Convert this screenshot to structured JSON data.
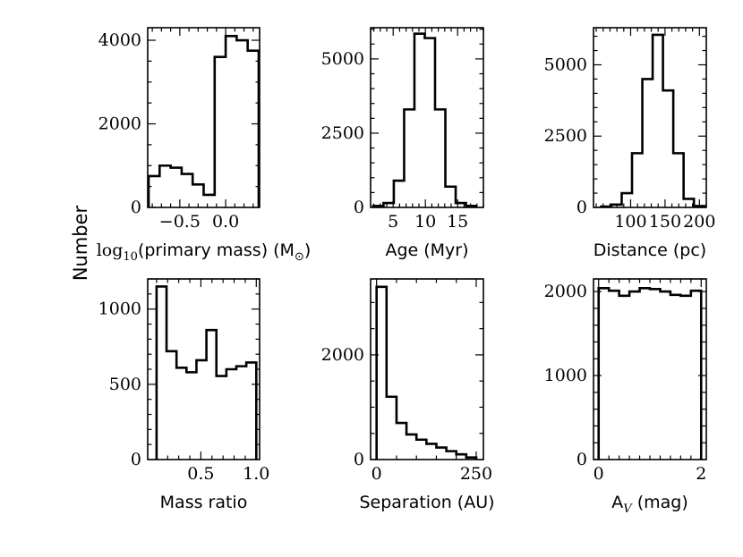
{
  "figure": {
    "ylabel": "Number",
    "line_color": "#000000",
    "background": "#ffffff"
  },
  "chart_data": [
    {
      "type": "bar",
      "histogram": true,
      "xlabel_parts": [
        "log",
        "10",
        "(primary mass) (M",
        "⊙",
        ")"
      ],
      "xlabel": "log10(primary mass) (M⊙)",
      "xlim": [
        -0.85,
        0.37
      ],
      "ylim": [
        0,
        4300
      ],
      "x_ticks": [
        -0.5,
        0.0
      ],
      "x_tick_labels": [
        "−0.5",
        "0.0"
      ],
      "x_minor_step": 0.1,
      "y_ticks": [
        0,
        2000,
        4000
      ],
      "y_tick_labels": [
        "0",
        "2000",
        "4000"
      ],
      "y_minor_step": 500,
      "bin_edges": [
        -0.84,
        -0.72,
        -0.6,
        -0.48,
        -0.36,
        -0.24,
        -0.12,
        0.0,
        0.12,
        0.24,
        0.36
      ],
      "counts": [
        750,
        1000,
        950,
        800,
        550,
        300,
        3600,
        4100,
        4000,
        3750
      ]
    },
    {
      "type": "bar",
      "histogram": true,
      "xlabel": "Age (Myr)",
      "xlim": [
        1.5,
        19
      ],
      "ylim": [
        0,
        6050
      ],
      "x_ticks": [
        5,
        10,
        15
      ],
      "x_tick_labels": [
        "5",
        "10",
        "15"
      ],
      "x_minor_step": 1,
      "y_ticks": [
        0,
        2500,
        5000
      ],
      "y_tick_labels": [
        "0",
        "2500",
        "5000"
      ],
      "y_minor_step": 500,
      "bin_edges": [
        1.9,
        3.5,
        5.1,
        6.7,
        8.3,
        9.9,
        11.5,
        13.1,
        14.7,
        16.3,
        17.9
      ],
      "counts": [
        50,
        150,
        900,
        3300,
        5850,
        5700,
        3300,
        700,
        150,
        50
      ]
    },
    {
      "type": "bar",
      "histogram": true,
      "xlabel": "Distance (pc)",
      "xlim": [
        46,
        210
      ],
      "ylim": [
        0,
        6300
      ],
      "x_ticks": [
        100,
        150,
        200
      ],
      "x_tick_labels": [
        "100",
        "150",
        "200"
      ],
      "x_minor_step": 10,
      "y_ticks": [
        0,
        2500,
        5000
      ],
      "y_tick_labels": [
        "0",
        "2500",
        "5000"
      ],
      "y_minor_step": 500,
      "bin_edges": [
        57,
        72,
        87,
        102,
        117,
        132,
        147,
        162,
        177,
        192,
        207
      ],
      "counts": [
        30,
        100,
        500,
        1900,
        4500,
        6050,
        4100,
        1900,
        300,
        50
      ]
    },
    {
      "type": "bar",
      "histogram": true,
      "xlabel": "Mass ratio",
      "xlim": [
        0.02,
        1.03
      ],
      "ylim": [
        0,
        1200
      ],
      "x_ticks": [
        0.5,
        1.0
      ],
      "x_tick_labels": [
        "0.5",
        "1.0"
      ],
      "x_minor_step": 0.1,
      "y_ticks": [
        0,
        500,
        1000
      ],
      "y_tick_labels": [
        "0",
        "500",
        "1000"
      ],
      "y_minor_step": 100,
      "bin_edges": [
        0.1,
        0.19,
        0.28,
        0.37,
        0.46,
        0.55,
        0.64,
        0.73,
        0.82,
        0.91,
        1.0
      ],
      "counts": [
        1150,
        720,
        610,
        580,
        660,
        860,
        555,
        600,
        620,
        645
      ]
    },
    {
      "type": "bar",
      "histogram": true,
      "xlabel": "Separation (AU)",
      "xlim": [
        -15,
        268
      ],
      "ylim": [
        0,
        3450
      ],
      "x_ticks": [
        0,
        250
      ],
      "x_tick_labels": [
        "0",
        "250"
      ],
      "x_minor_step": 50,
      "y_ticks": [
        0,
        2000
      ],
      "y_tick_labels": [
        "0",
        "2000"
      ],
      "y_minor_step": 500,
      "bin_edges": [
        0,
        25,
        50,
        75,
        100,
        125,
        150,
        175,
        200,
        225,
        250
      ],
      "counts": [
        3300,
        1200,
        700,
        480,
        380,
        300,
        230,
        160,
        100,
        40
      ]
    },
    {
      "type": "bar",
      "histogram": true,
      "xlabel_parts": [
        "A",
        "V",
        " (mag)"
      ],
      "xlabel": "AV (mag)",
      "xlim": [
        -0.1,
        2.1
      ],
      "ylim": [
        0,
        2150
      ],
      "x_ticks": [
        0,
        2
      ],
      "x_tick_labels": [
        "0",
        "2"
      ],
      "x_minor_step": 0.2,
      "y_ticks": [
        0,
        1000,
        2000
      ],
      "y_tick_labels": [
        "0",
        "1000",
        "2000"
      ],
      "y_minor_step": 200,
      "bin_edges": [
        0.0,
        0.2,
        0.4,
        0.6,
        0.8,
        1.0,
        1.2,
        1.4,
        1.6,
        1.8,
        2.0
      ],
      "counts": [
        2040,
        2010,
        1950,
        2000,
        2040,
        2030,
        2000,
        1960,
        1950,
        2010
      ]
    }
  ]
}
